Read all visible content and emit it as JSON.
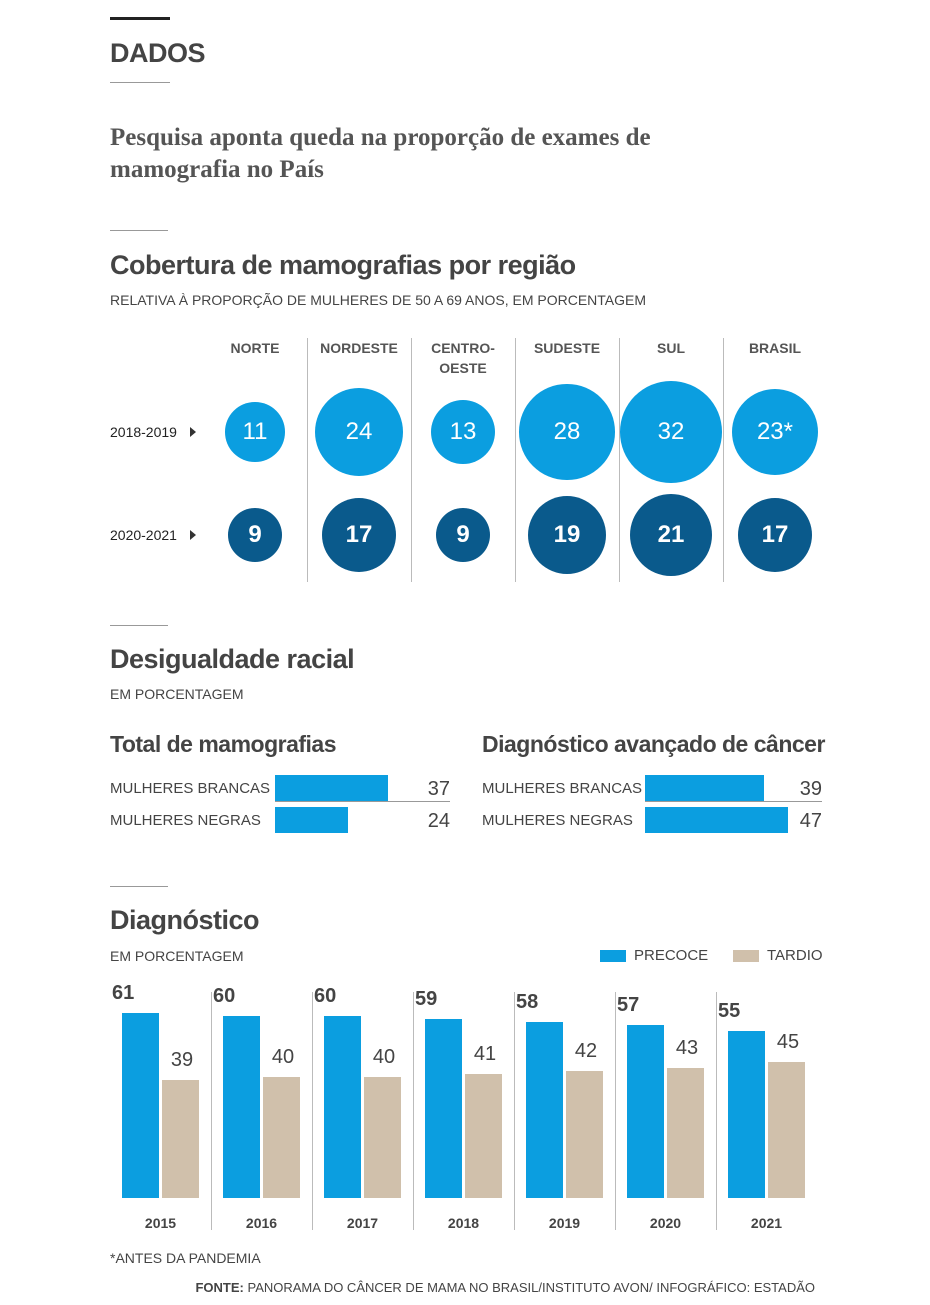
{
  "header": {
    "section": "DADOS",
    "headline": "Pesquisa aponta queda na proporção de exames de mamografia no País"
  },
  "racial": {
    "title": "Desigualdade racial",
    "subtitle": "EM PORCENTAGEM"
  },
  "chart_data": [
    {
      "type": "bubble",
      "title": "Cobertura de mamografias por região",
      "subtitle": "RELATIVA À PROPORÇÃO DE MULHERES DE 50 A 69 ANOS, EM PORCENTAGEM",
      "categories": [
        "NORTE",
        "NORDESTE",
        "CENTRO-OESTE",
        "SUDESTE",
        "SUL",
        "BRASIL"
      ],
      "series": [
        {
          "name": "2018-2019",
          "color": "#0b9ee0",
          "values": [
            11,
            24,
            13,
            28,
            32,
            23
          ],
          "value_labels": [
            "11",
            "24",
            "13",
            "28",
            "32",
            "23*"
          ]
        },
        {
          "name": "2020-2021",
          "color": "#0a5a8c",
          "values": [
            9,
            17,
            9,
            19,
            21,
            17
          ]
        }
      ]
    },
    {
      "type": "hbar",
      "title": "Total de mamografias",
      "categories": [
        "MULHERES BRANCAS",
        "MULHERES NEGRAS"
      ],
      "values": [
        37,
        24
      ],
      "color": "#0b9ee0"
    },
    {
      "type": "hbar",
      "title": "Diagnóstico avançado de câncer",
      "categories": [
        "MULHERES BRANCAS",
        "MULHERES NEGRAS"
      ],
      "values": [
        39,
        47
      ],
      "color": "#0b9ee0"
    },
    {
      "type": "grouped_bar",
      "title": "Diagnóstico",
      "subtitle": "EM PORCENTAGEM",
      "categories": [
        "2015",
        "2016",
        "2017",
        "2018",
        "2019",
        "2020",
        "2021"
      ],
      "series": [
        {
          "name": "PRECOCE",
          "color": "#0b9ee0",
          "values": [
            61,
            60,
            60,
            59,
            58,
            57,
            55
          ]
        },
        {
          "name": "TARDIO",
          "color": "#d0c0ab",
          "values": [
            39,
            40,
            40,
            41,
            42,
            43,
            45
          ]
        }
      ]
    }
  ],
  "footer": {
    "note": "*ANTES DA PANDEMIA",
    "source_label": "FONTE:",
    "source": "PANORAMA DO CÂNCER DE MAMA NO BRASIL/INSTITUTO AVON/ INFOGRÁFICO: ESTADÃO"
  }
}
